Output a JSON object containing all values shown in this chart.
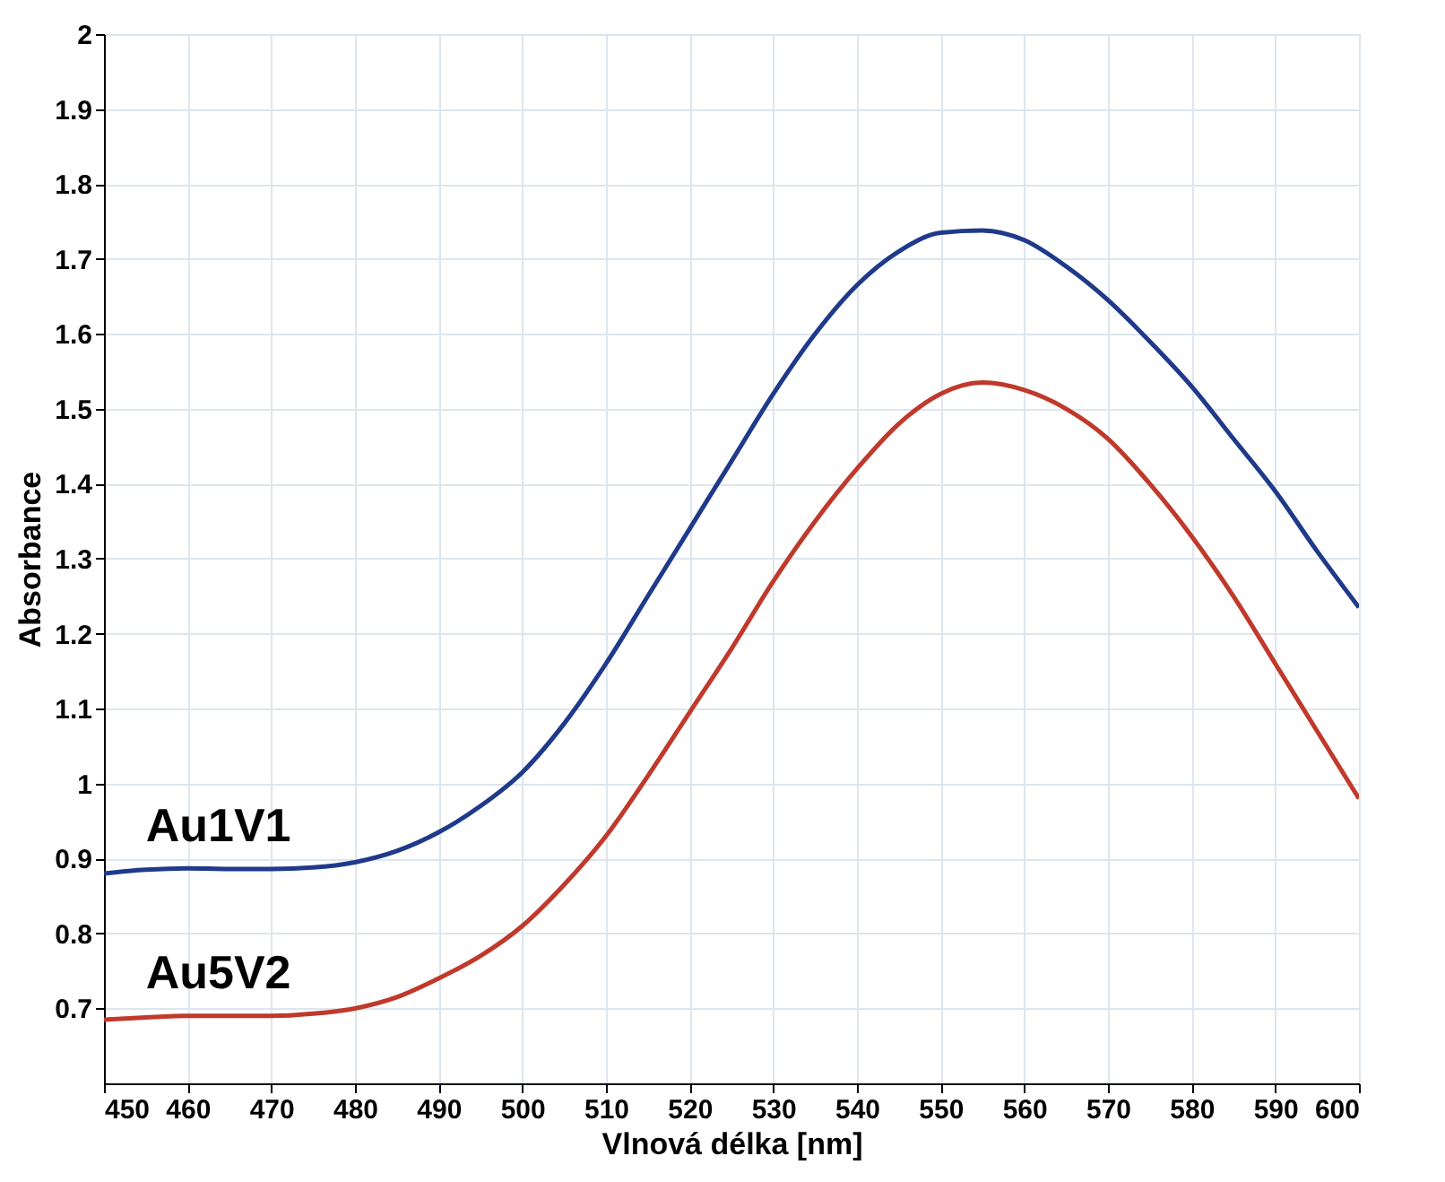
{
  "chart_data": {
    "type": "line",
    "xlabel": "Vlnová délka [nm]",
    "ylabel": "Absorbance",
    "x": [
      450,
      455,
      460,
      465,
      470,
      475,
      480,
      485,
      490,
      495,
      500,
      505,
      510,
      515,
      520,
      525,
      530,
      535,
      540,
      545,
      550,
      555,
      560,
      565,
      570,
      575,
      580,
      585,
      590,
      595,
      600
    ],
    "series": [
      {
        "name": "Au1V1",
        "color": "#1f3a8a",
        "values": [
          0.88,
          0.885,
          0.887,
          0.886,
          0.886,
          0.888,
          0.895,
          0.91,
          0.935,
          0.97,
          1.015,
          1.08,
          1.16,
          1.25,
          1.34,
          1.43,
          1.52,
          1.6,
          1.665,
          1.71,
          1.735,
          1.738,
          1.725,
          1.69,
          1.645,
          1.59,
          1.53,
          1.46,
          1.39,
          1.31,
          1.235
        ]
      },
      {
        "name": "Au5V2",
        "color": "#c0392b",
        "values": [
          0.685,
          0.688,
          0.69,
          0.69,
          0.69,
          0.693,
          0.7,
          0.715,
          0.74,
          0.77,
          0.81,
          0.865,
          0.93,
          1.01,
          1.095,
          1.18,
          1.27,
          1.35,
          1.42,
          1.48,
          1.52,
          1.535,
          1.525,
          1.5,
          1.46,
          1.4,
          1.33,
          1.25,
          1.16,
          1.07,
          0.98
        ]
      }
    ],
    "xlim": [
      450,
      600
    ],
    "xticks": [
      450,
      460,
      470,
      480,
      490,
      500,
      510,
      520,
      530,
      540,
      550,
      560,
      570,
      580,
      590,
      600
    ],
    "ylim": [
      0.6,
      2
    ],
    "yticks": [
      0.7,
      0.8,
      0.9,
      1,
      1.1,
      1.2,
      1.3,
      1.4,
      1.5,
      1.6,
      1.7,
      1.8,
      1.9,
      2
    ],
    "grid": true,
    "legend": false,
    "marker": "none",
    "line_style": "solid"
  }
}
